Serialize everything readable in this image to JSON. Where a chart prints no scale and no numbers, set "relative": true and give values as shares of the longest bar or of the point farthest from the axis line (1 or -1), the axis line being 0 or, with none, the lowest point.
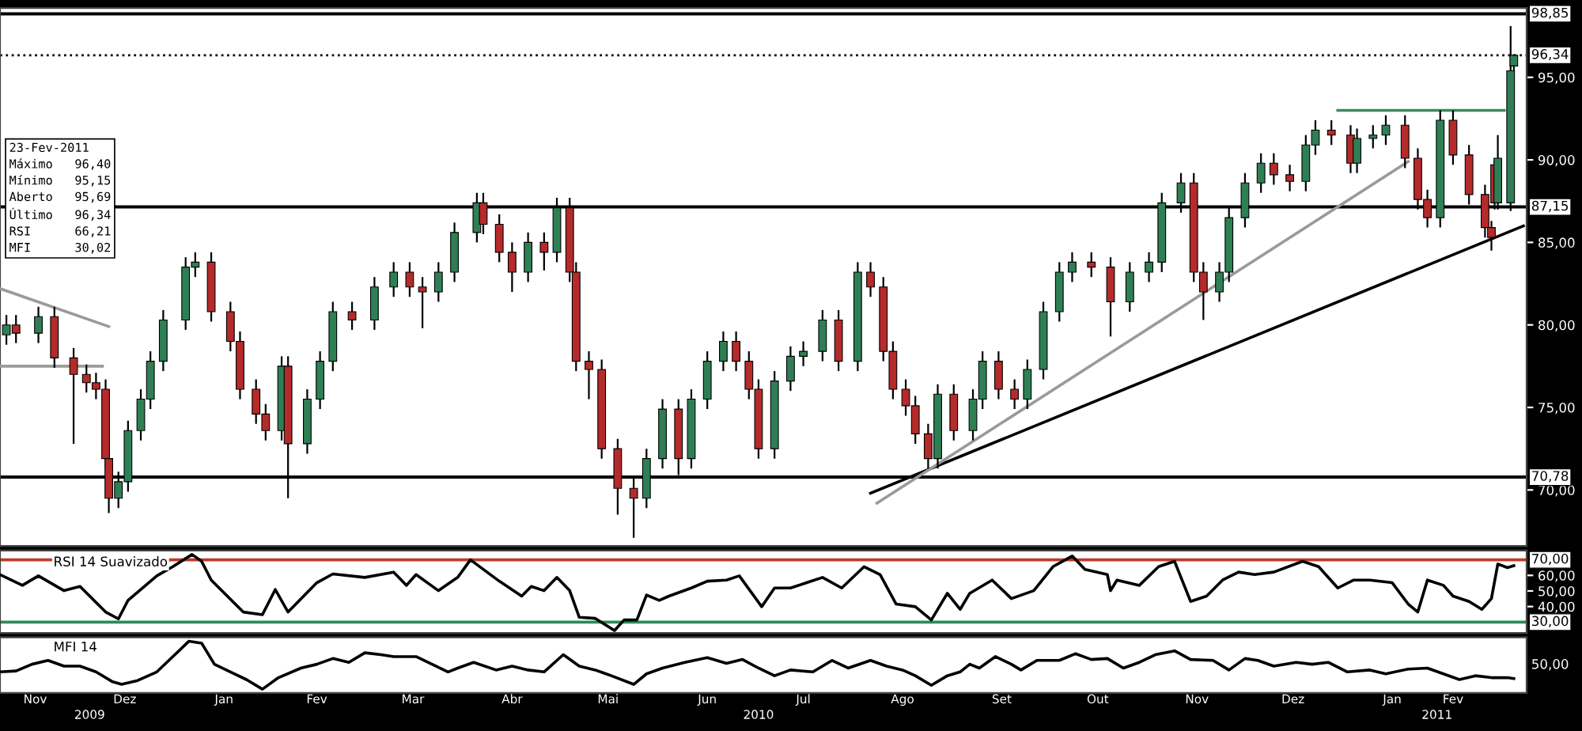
{
  "chart_data": [
    {
      "type": "candlestick",
      "xlim": [
        "2009-11-07",
        "2011-02-27"
      ],
      "ylim": [
        66.6,
        99.2
      ],
      "yticks": [
        {
          "value": 70,
          "label": "70,00"
        },
        {
          "value": 75,
          "label": "75,00"
        },
        {
          "value": 80,
          "label": "80,00"
        },
        {
          "value": 85,
          "label": "85,00"
        },
        {
          "value": 90,
          "label": "90,00"
        },
        {
          "value": 95,
          "label": "95,00"
        }
      ],
      "tick_labels": "y",
      "colors": [
        "#2f7f55",
        "#b52a2a",
        "#2f7f55",
        "#b52a2a",
        "#b52a2a",
        "#b52a2a",
        "#b52a2a",
        "#b52a2a",
        "#b52a2a",
        "#2f7f55",
        "#2f7f55",
        "#2f7f55",
        "#2f7f55",
        "#2f7f55",
        "#2f7f55",
        "#2f7f55",
        "#b52a2a",
        "#b52a2a",
        "#b52a2a",
        "#b52a2a",
        "#b52a2a",
        "#2f7f55",
        "#b52a2a",
        "#2f7f55",
        "#2f7f55",
        "#2f7f55",
        "#b52a2a",
        "#2f7f55",
        "#2f7f55",
        "#b52a2a",
        "#b52a2a",
        "#2f7f55",
        "#2f7f55",
        "#2f7f55",
        "#b52a2a",
        "#b52a2a",
        "#b52a2a",
        "#2f7f55",
        "#b52a2a",
        "#2f7f55",
        "#b52a2a",
        "#b52a2a",
        "#b52a2a",
        "#b52a2a",
        "#b52a2a",
        "#b52a2a",
        "#2f7f55",
        "#2f7f55",
        "#b52a2a",
        "#2f7f55",
        "#2f7f55",
        "#2f7f55",
        "#b52a2a",
        "#b52a2a",
        "#b52a2a",
        "#2f7f55",
        "#2f7f55",
        "#2f7f55",
        "#2f7f55",
        "#b52a2a",
        "#2f7f55",
        "#b52a2a",
        "#b52a2a",
        "#b52a2a",
        "#b52a2a",
        "#b52a2a",
        "#b52a2a",
        "#2f7f55",
        "#b52a2a",
        "#2f7f55",
        "#2f7f55",
        "#b52a2a",
        "#b52a2a",
        "#2f7f55",
        "#2f7f55",
        "#2f7f55",
        "#2f7f55",
        "#b52a2a",
        "#b52a2a",
        "#2f7f55",
        "#2f7f55",
        "#2f7f55",
        "#2f7f55",
        "#b52a2a",
        "#b52a2a",
        "#2f7f55",
        "#2f7f55",
        "#2f7f55",
        "#2f7f55",
        "#b52a2a",
        "#b52a2a",
        "#2f7f55",
        "#2f7f55",
        "#b52a2a",
        "#b52a2a",
        "#2f7f55",
        "#2f7f55",
        "#2f7f55",
        "#b52a2a",
        "#b52a2a",
        "#b52a2a",
        "#2f7f55",
        "#b52a2a",
        "#b52a2a",
        "#b52a2a",
        "#b52a2a",
        "#b52a2a",
        "#2f7f55",
        "#2f7f55",
        "#2f7f55"
      ],
      "x": [
        "2009-11-09",
        "2009-11-12",
        "2009-11-19",
        "2009-11-24",
        "2009-11-30",
        "2009-12-04",
        "2009-12-07",
        "2009-12-10",
        "2009-12-11",
        "2009-12-14",
        "2009-12-17",
        "2009-12-21",
        "2009-12-24",
        "2009-12-28",
        "2010-01-04",
        "2010-01-07",
        "2010-01-12",
        "2010-01-18",
        "2010-01-21",
        "2010-01-26",
        "2010-01-29",
        "2010-02-03",
        "2010-02-05",
        "2010-02-11",
        "2010-02-15",
        "2010-02-19",
        "2010-02-25",
        "2010-03-04",
        "2010-03-10",
        "2010-03-15",
        "2010-03-19",
        "2010-03-24",
        "2010-03-29",
        "2010-04-05",
        "2010-04-07",
        "2010-04-12",
        "2010-04-16",
        "2010-04-21",
        "2010-04-26",
        "2010-04-30",
        "2010-05-04",
        "2010-05-06",
        "2010-05-10",
        "2010-05-14",
        "2010-05-19",
        "2010-05-24",
        "2010-05-28",
        "2010-06-02",
        "2010-06-07",
        "2010-06-11",
        "2010-06-16",
        "2010-06-21",
        "2010-06-25",
        "2010-06-29",
        "2010-07-02",
        "2010-07-07",
        "2010-07-12",
        "2010-07-16",
        "2010-07-22",
        "2010-07-27",
        "2010-08-02",
        "2010-08-06",
        "2010-08-10",
        "2010-08-13",
        "2010-08-17",
        "2010-08-20",
        "2010-08-24",
        "2010-08-27",
        "2010-09-01",
        "2010-09-07",
        "2010-09-10",
        "2010-09-15",
        "2010-09-20",
        "2010-09-24",
        "2010-09-29",
        "2010-10-04",
        "2010-10-08",
        "2010-10-14",
        "2010-10-20",
        "2010-10-26",
        "2010-11-01",
        "2010-11-05",
        "2010-11-11",
        "2010-11-15",
        "2010-11-18",
        "2010-11-23",
        "2010-11-26",
        "2010-12-01",
        "2010-12-06",
        "2010-12-10",
        "2010-12-15",
        "2010-12-20",
        "2010-12-23",
        "2010-12-28",
        "2011-01-03",
        "2011-01-05",
        "2011-01-10",
        "2011-01-14",
        "2011-01-20",
        "2011-01-24",
        "2011-01-27",
        "2011-01-31",
        "2011-02-04",
        "2011-02-09",
        "2011-02-14",
        "2011-02-16",
        "2011-02-17",
        "2011-02-18",
        "2011-02-22",
        "2011-02-23"
      ],
      "ohlc": [
        [
          79.4,
          80.6,
          78.8,
          80.0
        ],
        [
          80.0,
          80.6,
          78.9,
          79.5
        ],
        [
          79.5,
          81.1,
          78.9,
          80.5
        ],
        [
          80.5,
          81.1,
          77.4,
          78.0
        ],
        [
          78.0,
          78.6,
          72.8,
          77.0
        ],
        [
          77.0,
          77.6,
          75.9,
          76.5
        ],
        [
          76.5,
          77.1,
          75.5,
          76.1
        ],
        [
          76.1,
          76.7,
          71.3,
          71.9
        ],
        [
          71.9,
          72.5,
          68.6,
          69.5
        ],
        [
          69.5,
          71.1,
          68.9,
          70.5
        ],
        [
          70.5,
          74.2,
          69.9,
          73.6
        ],
        [
          73.6,
          76.1,
          73.0,
          75.5
        ],
        [
          75.5,
          78.4,
          74.9,
          77.8
        ],
        [
          77.8,
          80.9,
          77.2,
          80.3
        ],
        [
          80.3,
          84.1,
          79.7,
          83.5
        ],
        [
          83.5,
          84.4,
          82.9,
          83.8
        ],
        [
          83.8,
          84.4,
          80.2,
          80.8
        ],
        [
          80.8,
          81.4,
          78.4,
          79.0
        ],
        [
          79.0,
          79.6,
          75.5,
          76.1
        ],
        [
          76.1,
          76.7,
          74.0,
          74.6
        ],
        [
          74.6,
          75.2,
          73.0,
          73.6
        ],
        [
          73.6,
          78.1,
          73.0,
          77.5
        ],
        [
          77.5,
          78.1,
          69.5,
          72.8
        ],
        [
          72.8,
          76.1,
          72.2,
          75.5
        ],
        [
          75.5,
          78.4,
          74.9,
          77.8
        ],
        [
          77.8,
          81.4,
          77.2,
          80.8
        ],
        [
          80.8,
          81.4,
          79.7,
          80.3
        ],
        [
          80.3,
          82.9,
          79.7,
          82.3
        ],
        [
          82.3,
          83.8,
          81.7,
          83.2
        ],
        [
          83.2,
          83.8,
          81.7,
          82.3
        ],
        [
          82.3,
          82.9,
          79.8,
          82.0
        ],
        [
          82.0,
          83.8,
          81.4,
          83.2
        ],
        [
          83.2,
          86.2,
          82.6,
          85.6
        ],
        [
          85.6,
          88.0,
          85.0,
          87.4
        ],
        [
          87.4,
          88.0,
          85.5,
          86.1
        ],
        [
          86.1,
          86.7,
          83.8,
          84.4
        ],
        [
          84.4,
          85.0,
          82.0,
          83.2
        ],
        [
          83.2,
          85.6,
          82.6,
          85.0
        ],
        [
          85.0,
          85.6,
          83.3,
          84.4
        ],
        [
          84.4,
          87.7,
          83.8,
          87.1
        ],
        [
          87.1,
          87.7,
          82.6,
          83.2
        ],
        [
          83.2,
          83.8,
          77.2,
          77.8
        ],
        [
          77.8,
          78.4,
          75.5,
          77.3
        ],
        [
          77.3,
          77.9,
          71.9,
          72.5
        ],
        [
          72.5,
          73.1,
          68.5,
          70.1
        ],
        [
          70.1,
          70.7,
          67.1,
          69.5
        ],
        [
          69.5,
          72.5,
          68.9,
          71.9
        ],
        [
          71.9,
          75.5,
          71.3,
          74.9
        ],
        [
          74.9,
          75.5,
          70.9,
          71.9
        ],
        [
          71.9,
          76.1,
          71.3,
          75.5
        ],
        [
          75.5,
          78.4,
          74.9,
          77.8
        ],
        [
          77.8,
          79.6,
          77.2,
          79.0
        ],
        [
          79.0,
          79.6,
          77.2,
          77.8
        ],
        [
          77.8,
          78.4,
          75.5,
          76.1
        ],
        [
          76.1,
          76.7,
          71.9,
          72.5
        ],
        [
          72.5,
          77.2,
          71.9,
          76.6
        ],
        [
          76.6,
          78.7,
          76.0,
          78.1
        ],
        [
          78.1,
          79.0,
          77.5,
          78.4
        ],
        [
          78.4,
          80.9,
          77.8,
          80.3
        ],
        [
          80.3,
          80.9,
          77.2,
          77.8
        ],
        [
          77.8,
          83.8,
          77.2,
          83.2
        ],
        [
          83.2,
          83.8,
          81.7,
          82.3
        ],
        [
          82.3,
          82.9,
          77.8,
          78.4
        ],
        [
          78.4,
          79.0,
          75.5,
          76.1
        ],
        [
          76.1,
          76.7,
          74.5,
          75.1
        ],
        [
          75.1,
          75.7,
          72.8,
          73.4
        ],
        [
          73.4,
          74.0,
          71.3,
          71.9
        ],
        [
          71.9,
          76.4,
          71.3,
          75.8
        ],
        [
          75.8,
          76.4,
          73.0,
          73.6
        ],
        [
          73.6,
          76.1,
          73.0,
          75.5
        ],
        [
          75.5,
          78.4,
          74.9,
          77.8
        ],
        [
          77.8,
          78.4,
          75.5,
          76.1
        ],
        [
          76.1,
          76.7,
          74.9,
          75.5
        ],
        [
          75.5,
          77.9,
          74.9,
          77.3
        ],
        [
          77.3,
          81.4,
          76.7,
          80.8
        ],
        [
          80.8,
          83.8,
          80.2,
          83.2
        ],
        [
          83.2,
          84.4,
          82.6,
          83.8
        ],
        [
          83.8,
          84.4,
          82.9,
          83.5
        ],
        [
          83.5,
          84.1,
          79.3,
          81.4
        ],
        [
          81.4,
          83.8,
          80.8,
          83.2
        ],
        [
          83.2,
          84.4,
          82.6,
          83.8
        ],
        [
          83.8,
          88.0,
          83.2,
          87.4
        ],
        [
          87.4,
          89.2,
          86.8,
          88.6
        ],
        [
          88.6,
          89.2,
          82.6,
          83.2
        ],
        [
          83.2,
          83.8,
          80.3,
          82.0
        ],
        [
          82.0,
          83.8,
          81.4,
          83.2
        ],
        [
          83.2,
          87.1,
          82.6,
          86.5
        ],
        [
          86.5,
          89.2,
          85.9,
          88.6
        ],
        [
          88.6,
          90.4,
          88.0,
          89.8
        ],
        [
          89.8,
          90.4,
          88.5,
          89.1
        ],
        [
          89.1,
          89.7,
          88.1,
          88.7
        ],
        [
          88.7,
          91.5,
          88.1,
          90.9
        ],
        [
          90.9,
          92.4,
          90.3,
          91.8
        ],
        [
          91.8,
          92.4,
          90.9,
          91.5
        ],
        [
          91.5,
          92.1,
          89.2,
          89.8
        ],
        [
          89.8,
          91.9,
          89.2,
          91.3
        ],
        [
          91.3,
          92.1,
          90.7,
          91.5
        ],
        [
          91.5,
          92.7,
          90.9,
          92.1
        ],
        [
          92.1,
          92.7,
          89.5,
          90.1
        ],
        [
          90.1,
          90.7,
          87.0,
          87.6
        ],
        [
          87.6,
          88.2,
          85.9,
          86.5
        ],
        [
          86.5,
          93.0,
          85.9,
          92.4
        ],
        [
          92.4,
          93.0,
          89.7,
          90.3
        ],
        [
          90.3,
          90.9,
          87.3,
          87.9
        ],
        [
          87.9,
          88.5,
          85.3,
          85.9
        ],
        [
          85.9,
          86.3,
          84.5,
          85.3
        ],
        [
          89.7,
          90.0,
          87.0,
          87.4
        ],
        [
          87.4,
          91.5,
          87.0,
          90.1
        ],
        [
          87.4,
          98.1,
          86.9,
          95.4
        ],
        [
          95.69,
          96.4,
          95.15,
          96.34
        ]
      ],
      "series": [
        {
          "type": "line",
          "color": "#000000",
          "x": [
            "2010-08-06",
            "2011-02-26"
          ],
          "values": [
            69.8,
            86.0
          ]
        },
        {
          "type": "line",
          "color": "#9a9a9a",
          "x": [
            "2010-08-08",
            "2011-01-21"
          ],
          "values": [
            69.2,
            89.9
          ]
        },
        {
          "type": "line",
          "color": "#9a9a9a",
          "x": [
            "2009-11-07",
            "2009-12-11"
          ],
          "values": [
            82.2,
            79.9
          ]
        },
        {
          "type": "line",
          "color": "#9a9a9a",
          "x": [
            "2009-11-07",
            "2009-12-09"
          ],
          "values": [
            77.5,
            77.5
          ]
        },
        {
          "type": "line",
          "color": "#3a8a5a",
          "x": [
            "2010-12-30",
            "2011-02-20"
          ],
          "values": [
            93.0,
            93.0
          ]
        }
      ],
      "ref_lines": [
        {
          "axis": "y",
          "value": 98.85,
          "label": "98,85",
          "color": "#000000",
          "line_style": "solid"
        },
        {
          "axis": "y",
          "value": 96.34,
          "label": "96,34",
          "color": "#000000",
          "line_style": "dotted"
        },
        {
          "axis": "y",
          "value": 87.15,
          "label": "87,15",
          "color": "#000000",
          "line_style": "solid"
        },
        {
          "axis": "y",
          "value": 70.78,
          "label": "70,78",
          "color": "#000000",
          "line_style": "solid"
        }
      ],
      "annotations": [
        "23-Fev-2011",
        "Máximo   96,40",
        "Mínimo   95,15",
        "Aberto   95,69",
        "Último   96,34",
        "RSI      66,21",
        "MFI      30,02"
      ]
    },
    {
      "type": "line",
      "title": "RSI 14 Suavizado",
      "xlim": [
        "2009-11-07",
        "2011-02-27"
      ],
      "ylim": [
        23,
        76
      ],
      "tick_labels": "y",
      "yticks": [
        {
          "value": 40,
          "label": "40,00"
        },
        {
          "value": 50,
          "label": "50,00"
        },
        {
          "value": 60,
          "label": "60,00"
        }
      ],
      "ref_lines": [
        {
          "axis": "y",
          "value": 70,
          "label": "70,00",
          "color": "#c0392b",
          "line_style": "solid"
        },
        {
          "axis": "y",
          "value": 30,
          "label": "30,00",
          "color": "#2e8b57",
          "line_style": "solid"
        }
      ],
      "series": [
        {
          "color": "#000000",
          "x": [
            "2009-11-07",
            "2009-11-14",
            "2009-11-19",
            "2009-11-27",
            "2009-12-02",
            "2009-12-10",
            "2009-12-14",
            "2009-12-17",
            "2009-12-26",
            "2009-12-31",
            "2010-01-06",
            "2010-01-09",
            "2010-01-12",
            "2010-01-22",
            "2010-01-28",
            "2010-02-01",
            "2010-02-05",
            "2010-02-14",
            "2010-02-19",
            "2010-03-01",
            "2010-03-10",
            "2010-03-14",
            "2010-03-17",
            "2010-03-24",
            "2010-03-30",
            "2010-04-03",
            "2010-04-12",
            "2010-04-19",
            "2010-04-22",
            "2010-04-26",
            "2010-04-30",
            "2010-05-04",
            "2010-05-07",
            "2010-05-12",
            "2010-05-18",
            "2010-05-21",
            "2010-05-25",
            "2010-05-28",
            "2010-06-01",
            "2010-06-04",
            "2010-06-11",
            "2010-06-16",
            "2010-06-22",
            "2010-06-26",
            "2010-07-03",
            "2010-07-07",
            "2010-07-12",
            "2010-07-22",
            "2010-07-28",
            "2010-08-04",
            "2010-08-09",
            "2010-08-14",
            "2010-08-20",
            "2010-08-25",
            "2010-08-30",
            "2010-09-03",
            "2010-09-06",
            "2010-09-13",
            "2010-09-19",
            "2010-09-26",
            "2010-10-02",
            "2010-10-08",
            "2010-10-12",
            "2010-10-19",
            "2010-10-20",
            "2010-10-22",
            "2010-10-29",
            "2010-11-04",
            "2010-11-09",
            "2010-11-14",
            "2010-11-19",
            "2010-11-24",
            "2010-11-29",
            "2010-12-04",
            "2010-12-10",
            "2010-12-19",
            "2010-12-24",
            "2010-12-30",
            "2011-01-04",
            "2011-01-09",
            "2011-01-16",
            "2011-01-21",
            "2011-01-24",
            "2011-01-27",
            "2011-02-01",
            "2011-02-04",
            "2011-02-09",
            "2011-02-13",
            "2011-02-16",
            "2011-02-18",
            "2011-02-21",
            "2011-02-23"
          ],
          "values": [
            60.5,
            53.6,
            59.7,
            50.2,
            52.9,
            36.5,
            32.1,
            44.0,
            59.7,
            65.6,
            73.4,
            69.0,
            57.0,
            36.5,
            34.8,
            50.9,
            36.5,
            55.3,
            60.9,
            58.7,
            62.1,
            53.6,
            60.5,
            50.2,
            58.7,
            70.0,
            56.3,
            46.7,
            52.9,
            50.2,
            58.7,
            50.2,
            33.1,
            32.4,
            24.6,
            31.4,
            31.4,
            47.4,
            44.0,
            46.7,
            51.9,
            56.3,
            57.0,
            59.7,
            39.9,
            51.9,
            51.9,
            58.7,
            51.9,
            65.6,
            60.5,
            41.6,
            39.9,
            31.4,
            48.5,
            38.2,
            48.5,
            57.0,
            45.1,
            50.2,
            65.6,
            72.4,
            63.8,
            60.5,
            50.2,
            57.0,
            53.6,
            65.6,
            69.0,
            43.3,
            46.7,
            57.0,
            62.1,
            60.5,
            62.1,
            69.0,
            65.6,
            51.9,
            57.0,
            57.0,
            55.3,
            41.6,
            36.5,
            57.0,
            53.6,
            46.7,
            43.3,
            38.2,
            45.1,
            67.3,
            65.0,
            66.21
          ]
        }
      ]
    },
    {
      "type": "line",
      "title": "MFI 14",
      "xlim": [
        "2009-11-07",
        "2011-02-27"
      ],
      "relative": true,
      "annotations": [
        "50,00"
      ],
      "xticks": [
        {
          "value": "2009-11-18",
          "label": "Nov"
        },
        {
          "value": "2009-12-16",
          "label": "Dez"
        },
        {
          "value": "2010-01-16",
          "label": "Jan"
        },
        {
          "value": "2010-02-14",
          "label": "Fev"
        },
        {
          "value": "2010-03-16",
          "label": "Mar"
        },
        {
          "value": "2010-04-16",
          "label": "Abr"
        },
        {
          "value": "2010-05-16",
          "label": "Mai"
        },
        {
          "value": "2010-06-16",
          "label": "Jun"
        },
        {
          "value": "2010-07-16",
          "label": "Jul"
        },
        {
          "value": "2010-08-16",
          "label": "Ago"
        },
        {
          "value": "2010-09-16",
          "label": "Set"
        },
        {
          "value": "2010-10-16",
          "label": "Out"
        },
        {
          "value": "2010-11-16",
          "label": "Nov"
        },
        {
          "value": "2010-12-16",
          "label": "Dez"
        },
        {
          "value": "2011-01-16",
          "label": "Jan"
        },
        {
          "value": "2011-02-04",
          "label": "Fev"
        }
      ],
      "x2lim": [
        "2009-11-07",
        "2011-02-27"
      ],
      "x2ticks": [
        {
          "value": "2009-12-05",
          "label": "2009"
        },
        {
          "value": "2010-07-02",
          "label": "2010"
        },
        {
          "value": "2011-01-30",
          "label": "2011"
        }
      ],
      "series": [
        {
          "color": "#000000",
          "x": [
            "2009-11-07",
            "2009-11-12",
            "2009-11-17",
            "2009-11-22",
            "2009-11-27",
            "2009-12-02",
            "2009-12-07",
            "2009-12-12",
            "2009-12-15",
            "2009-12-20",
            "2009-12-26",
            "2009-12-31",
            "2010-01-05",
            "2010-01-09",
            "2010-01-13",
            "2010-01-18",
            "2010-01-23",
            "2010-01-28",
            "2010-02-02",
            "2010-02-09",
            "2010-02-14",
            "2010-02-19",
            "2010-02-24",
            "2010-03-01",
            "2010-03-06",
            "2010-03-10",
            "2010-03-17",
            "2010-03-22",
            "2010-03-27",
            "2010-03-30",
            "2010-04-04",
            "2010-04-11",
            "2010-04-16",
            "2010-04-21",
            "2010-04-26",
            "2010-05-02",
            "2010-05-07",
            "2010-05-12",
            "2010-05-17",
            "2010-05-24",
            "2010-05-28",
            "2010-06-02",
            "2010-06-09",
            "2010-06-16",
            "2010-06-22",
            "2010-06-27",
            "2010-07-02",
            "2010-07-07",
            "2010-07-12",
            "2010-07-19",
            "2010-07-25",
            "2010-07-30",
            "2010-08-06",
            "2010-08-11",
            "2010-08-16",
            "2010-08-20",
            "2010-08-25",
            "2010-08-30",
            "2010-09-03",
            "2010-09-06",
            "2010-09-09",
            "2010-09-14",
            "2010-09-19",
            "2010-09-22",
            "2010-09-27",
            "2010-10-04",
            "2010-10-09",
            "2010-10-14",
            "2010-10-19",
            "2010-10-24",
            "2010-10-29",
            "2010-11-03",
            "2010-11-09",
            "2010-11-14",
            "2010-11-21",
            "2010-11-26",
            "2010-12-01",
            "2010-12-05",
            "2010-12-10",
            "2010-12-17",
            "2010-12-22",
            "2010-12-27",
            "2011-01-02",
            "2011-01-09",
            "2011-01-14",
            "2011-01-21",
            "2011-01-27",
            "2011-02-01",
            "2011-02-06",
            "2011-02-11",
            "2011-02-16",
            "2011-02-21",
            "2011-02-23"
          ],
          "values": [
            0.36,
            0.38,
            0.52,
            0.6,
            0.48,
            0.48,
            0.36,
            0.16,
            0.1,
            0.18,
            0.36,
            0.68,
            1,
            0.96,
            0.52,
            0.36,
            0.2,
            0,
            0.24,
            0.44,
            0.52,
            0.64,
            0.56,
            0.76,
            0.72,
            0.68,
            0.68,
            0.52,
            0.36,
            0.44,
            0.56,
            0.4,
            0.48,
            0.4,
            0.36,
            0.72,
            0.48,
            0.4,
            0.28,
            0.1,
            0.32,
            0.44,
            0.56,
            0.66,
            0.54,
            0.62,
            0.44,
            0.28,
            0.4,
            0.36,
            0.6,
            0.44,
            0.6,
            0.48,
            0.4,
            0.28,
            0.08,
            0.28,
            0.36,
            0.52,
            0.44,
            0.68,
            0.52,
            0.4,
            0.6,
            0.6,
            0.74,
            0.62,
            0.64,
            0.44,
            0.56,
            0.72,
            0.8,
            0.62,
            0.6,
            0.4,
            0.64,
            0.6,
            0.48,
            0.56,
            0.52,
            0.56,
            0.36,
            0.4,
            0.32,
            0.42,
            0.44,
            0.32,
            0.2,
            0.28,
            0.24,
            0.24,
            0.22
          ]
        }
      ]
    }
  ]
}
